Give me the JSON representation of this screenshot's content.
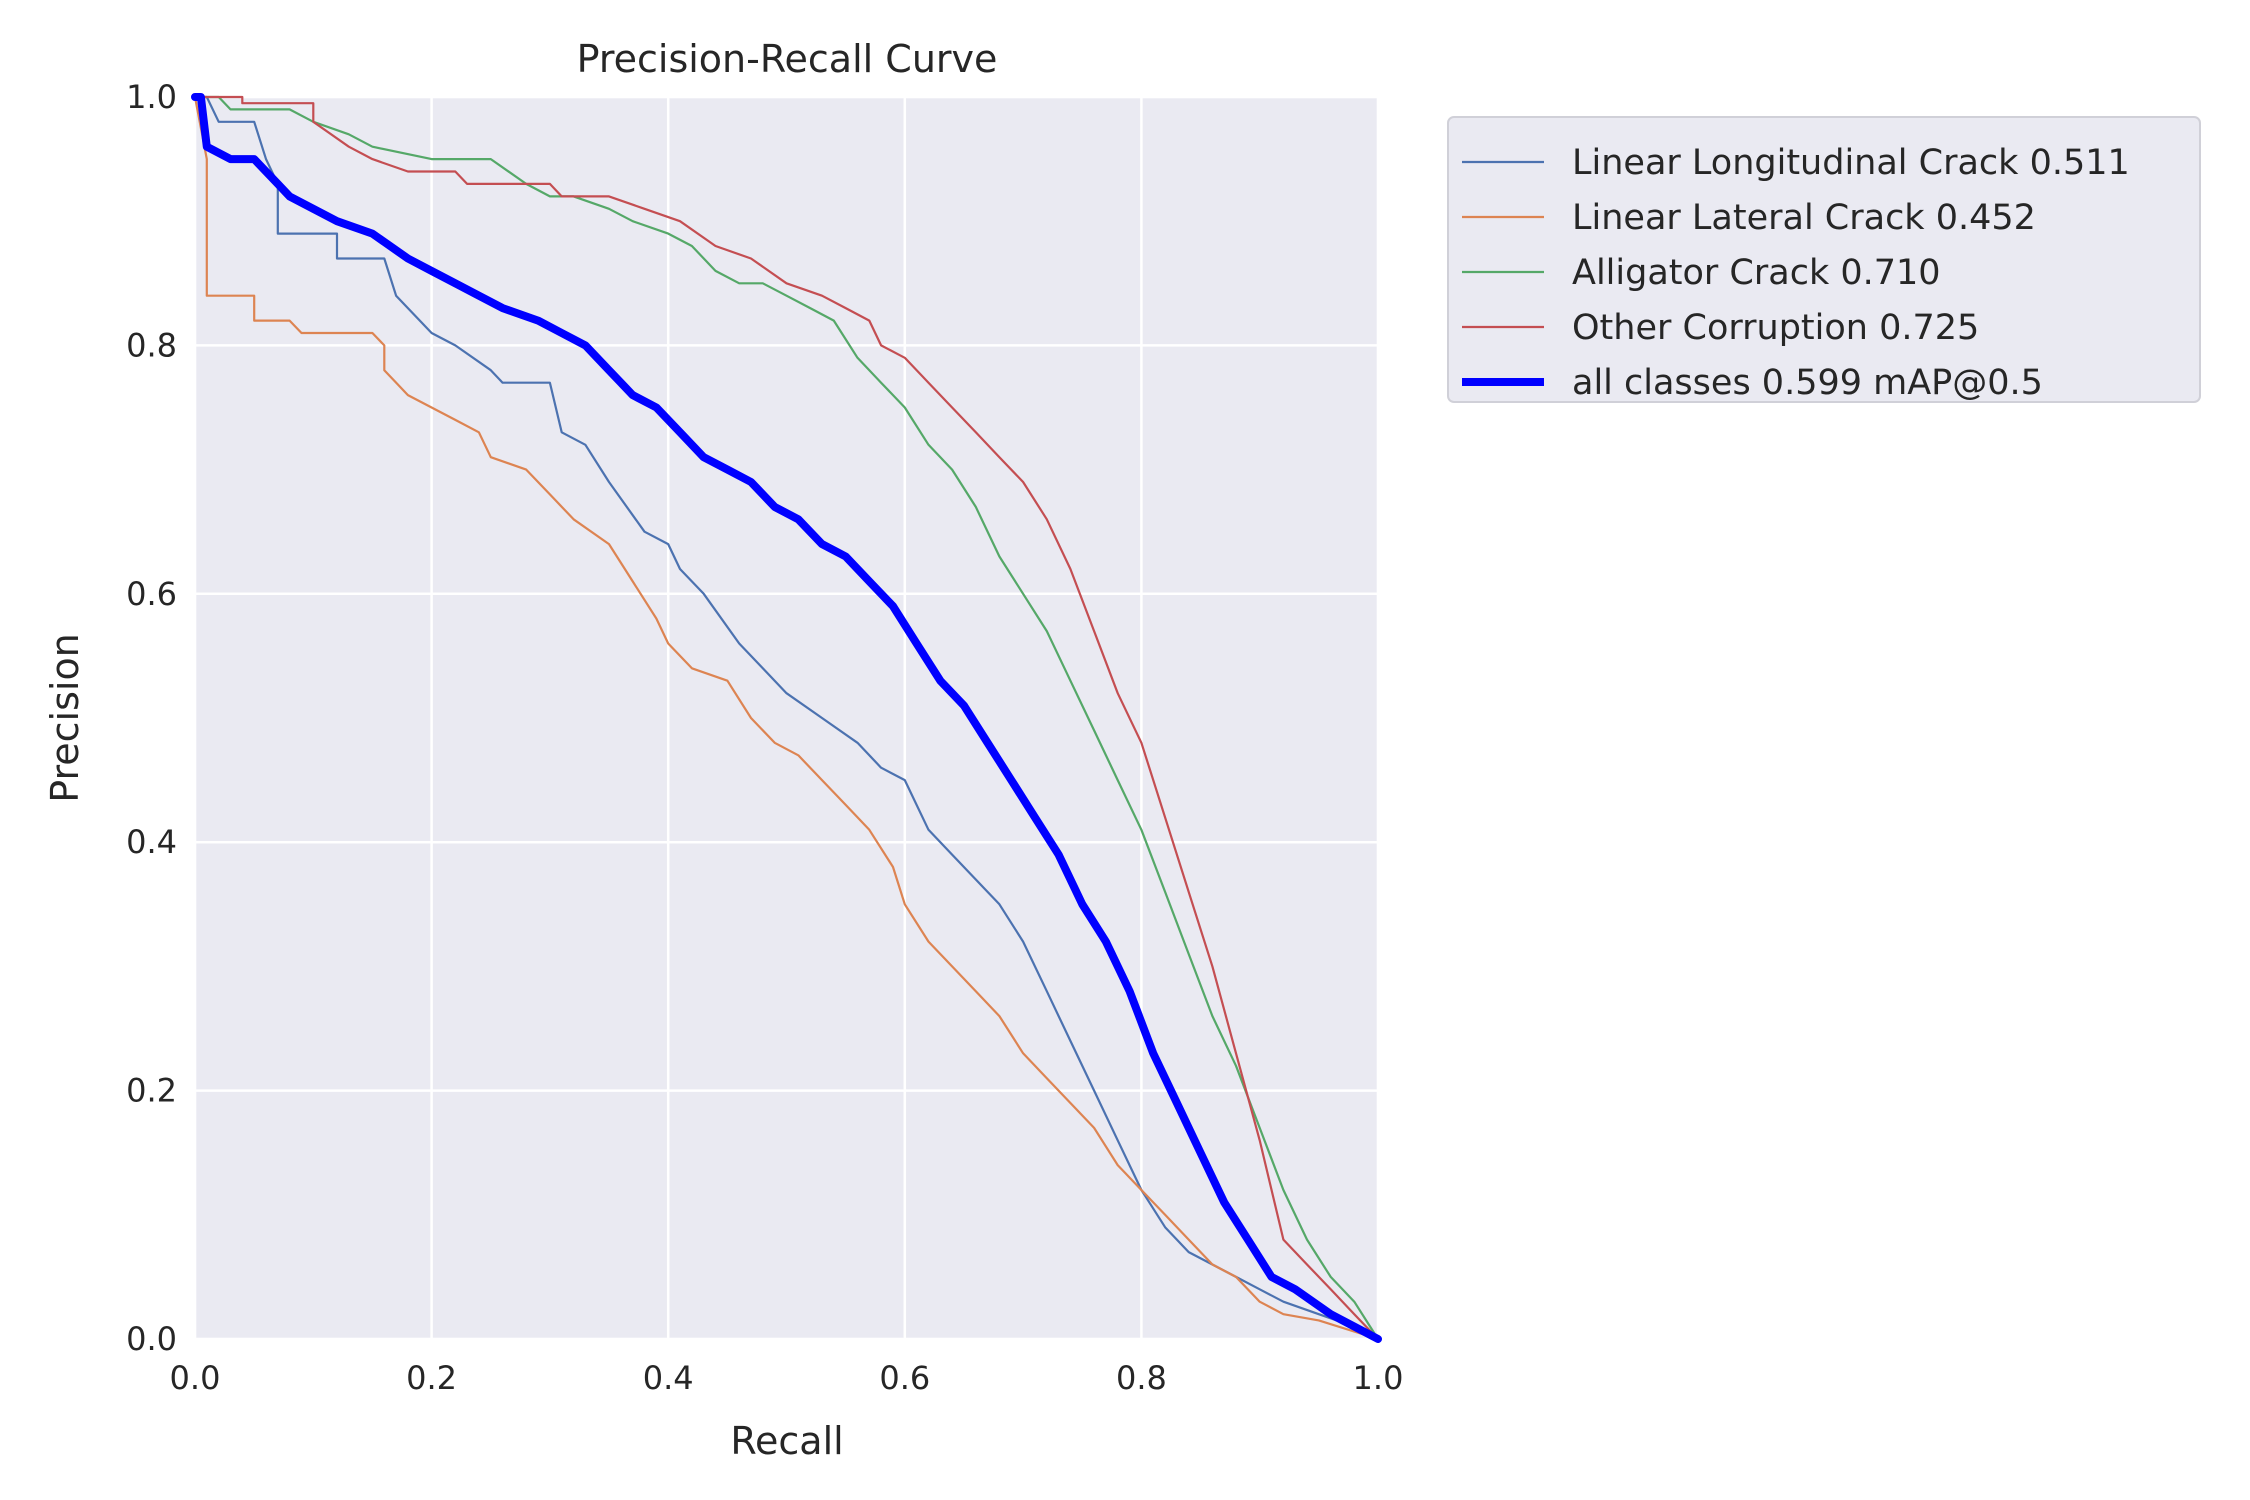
{
  "chart_data": {
    "type": "line",
    "title": "Precision-Recall Curve",
    "xlabel": "Recall",
    "ylabel": "Precision",
    "xlim": [
      0,
      1
    ],
    "ylim": [
      0,
      1
    ],
    "xticks": [
      "0.0",
      "0.2",
      "0.4",
      "0.6",
      "0.8",
      "1.0"
    ],
    "yticks": [
      "0.0",
      "0.2",
      "0.4",
      "0.6",
      "0.8",
      "1.0"
    ],
    "grid": true,
    "legend_position": "outside-top-right",
    "series": [
      {
        "name": "Linear Longitudinal Crack 0.511",
        "color": "#4c72b0",
        "width": "thin",
        "points": [
          [
            0,
            1
          ],
          [
            0.01,
            1
          ],
          [
            0.02,
            0.98
          ],
          [
            0.05,
            0.98
          ],
          [
            0.06,
            0.95
          ],
          [
            0.07,
            0.93
          ],
          [
            0.07,
            0.89
          ],
          [
            0.12,
            0.89
          ],
          [
            0.12,
            0.87
          ],
          [
            0.16,
            0.87
          ],
          [
            0.17,
            0.84
          ],
          [
            0.2,
            0.81
          ],
          [
            0.22,
            0.8
          ],
          [
            0.25,
            0.78
          ],
          [
            0.26,
            0.77
          ],
          [
            0.3,
            0.77
          ],
          [
            0.31,
            0.73
          ],
          [
            0.33,
            0.72
          ],
          [
            0.35,
            0.69
          ],
          [
            0.38,
            0.65
          ],
          [
            0.4,
            0.64
          ],
          [
            0.41,
            0.62
          ],
          [
            0.43,
            0.6
          ],
          [
            0.46,
            0.56
          ],
          [
            0.48,
            0.54
          ],
          [
            0.5,
            0.52
          ],
          [
            0.53,
            0.5
          ],
          [
            0.56,
            0.48
          ],
          [
            0.58,
            0.46
          ],
          [
            0.6,
            0.45
          ],
          [
            0.62,
            0.41
          ],
          [
            0.64,
            0.39
          ],
          [
            0.66,
            0.37
          ],
          [
            0.68,
            0.35
          ],
          [
            0.7,
            0.32
          ],
          [
            0.72,
            0.28
          ],
          [
            0.74,
            0.24
          ],
          [
            0.76,
            0.2
          ],
          [
            0.78,
            0.16
          ],
          [
            0.8,
            0.12
          ],
          [
            0.82,
            0.09
          ],
          [
            0.84,
            0.07
          ],
          [
            0.86,
            0.06
          ],
          [
            0.88,
            0.05
          ],
          [
            0.9,
            0.04
          ],
          [
            0.92,
            0.03
          ],
          [
            0.95,
            0.02
          ],
          [
            0.98,
            0.01
          ],
          [
            1,
            0
          ]
        ]
      },
      {
        "name": "Linear Lateral Crack 0.452",
        "color": "#dd8452",
        "width": "thin",
        "points": [
          [
            0,
            1
          ],
          [
            0.01,
            0.95
          ],
          [
            0.01,
            0.84
          ],
          [
            0.05,
            0.84
          ],
          [
            0.05,
            0.82
          ],
          [
            0.08,
            0.82
          ],
          [
            0.09,
            0.81
          ],
          [
            0.15,
            0.81
          ],
          [
            0.16,
            0.8
          ],
          [
            0.16,
            0.78
          ],
          [
            0.18,
            0.76
          ],
          [
            0.2,
            0.75
          ],
          [
            0.22,
            0.74
          ],
          [
            0.24,
            0.73
          ],
          [
            0.25,
            0.71
          ],
          [
            0.28,
            0.7
          ],
          [
            0.3,
            0.68
          ],
          [
            0.32,
            0.66
          ],
          [
            0.35,
            0.64
          ],
          [
            0.37,
            0.61
          ],
          [
            0.39,
            0.58
          ],
          [
            0.4,
            0.56
          ],
          [
            0.42,
            0.54
          ],
          [
            0.45,
            0.53
          ],
          [
            0.47,
            0.5
          ],
          [
            0.49,
            0.48
          ],
          [
            0.51,
            0.47
          ],
          [
            0.53,
            0.45
          ],
          [
            0.55,
            0.43
          ],
          [
            0.57,
            0.41
          ],
          [
            0.59,
            0.38
          ],
          [
            0.6,
            0.35
          ],
          [
            0.62,
            0.32
          ],
          [
            0.64,
            0.3
          ],
          [
            0.66,
            0.28
          ],
          [
            0.68,
            0.26
          ],
          [
            0.7,
            0.23
          ],
          [
            0.72,
            0.21
          ],
          [
            0.74,
            0.19
          ],
          [
            0.76,
            0.17
          ],
          [
            0.78,
            0.14
          ],
          [
            0.8,
            0.12
          ],
          [
            0.82,
            0.1
          ],
          [
            0.84,
            0.08
          ],
          [
            0.86,
            0.06
          ],
          [
            0.88,
            0.05
          ],
          [
            0.9,
            0.03
          ],
          [
            0.92,
            0.02
          ],
          [
            0.95,
            0.015
          ],
          [
            1,
            0
          ]
        ]
      },
      {
        "name": "Alligator Crack 0.710",
        "color": "#55a868",
        "width": "thin",
        "points": [
          [
            0,
            1
          ],
          [
            0.02,
            1
          ],
          [
            0.03,
            0.99
          ],
          [
            0.08,
            0.99
          ],
          [
            0.1,
            0.98
          ],
          [
            0.13,
            0.97
          ],
          [
            0.15,
            0.96
          ],
          [
            0.2,
            0.95
          ],
          [
            0.25,
            0.95
          ],
          [
            0.28,
            0.93
          ],
          [
            0.3,
            0.92
          ],
          [
            0.32,
            0.92
          ],
          [
            0.35,
            0.91
          ],
          [
            0.37,
            0.9
          ],
          [
            0.4,
            0.89
          ],
          [
            0.42,
            0.88
          ],
          [
            0.44,
            0.86
          ],
          [
            0.46,
            0.85
          ],
          [
            0.48,
            0.85
          ],
          [
            0.5,
            0.84
          ],
          [
            0.52,
            0.83
          ],
          [
            0.54,
            0.82
          ],
          [
            0.56,
            0.79
          ],
          [
            0.58,
            0.77
          ],
          [
            0.6,
            0.75
          ],
          [
            0.62,
            0.72
          ],
          [
            0.64,
            0.7
          ],
          [
            0.66,
            0.67
          ],
          [
            0.68,
            0.63
          ],
          [
            0.7,
            0.6
          ],
          [
            0.72,
            0.57
          ],
          [
            0.74,
            0.53
          ],
          [
            0.76,
            0.49
          ],
          [
            0.78,
            0.45
          ],
          [
            0.8,
            0.41
          ],
          [
            0.82,
            0.36
          ],
          [
            0.84,
            0.31
          ],
          [
            0.86,
            0.26
          ],
          [
            0.88,
            0.22
          ],
          [
            0.9,
            0.17
          ],
          [
            0.92,
            0.12
          ],
          [
            0.94,
            0.08
          ],
          [
            0.96,
            0.05
          ],
          [
            0.98,
            0.03
          ],
          [
            1,
            0
          ]
        ]
      },
      {
        "name": "Other Corruption 0.725",
        "color": "#c44e52",
        "width": "thin",
        "points": [
          [
            0,
            1
          ],
          [
            0.04,
            1
          ],
          [
            0.04,
            0.995
          ],
          [
            0.1,
            0.995
          ],
          [
            0.1,
            0.98
          ],
          [
            0.13,
            0.96
          ],
          [
            0.15,
            0.95
          ],
          [
            0.18,
            0.94
          ],
          [
            0.22,
            0.94
          ],
          [
            0.23,
            0.93
          ],
          [
            0.3,
            0.93
          ],
          [
            0.31,
            0.92
          ],
          [
            0.35,
            0.92
          ],
          [
            0.38,
            0.91
          ],
          [
            0.41,
            0.9
          ],
          [
            0.44,
            0.88
          ],
          [
            0.47,
            0.87
          ],
          [
            0.5,
            0.85
          ],
          [
            0.53,
            0.84
          ],
          [
            0.55,
            0.83
          ],
          [
            0.57,
            0.82
          ],
          [
            0.58,
            0.8
          ],
          [
            0.6,
            0.79
          ],
          [
            0.62,
            0.77
          ],
          [
            0.64,
            0.75
          ],
          [
            0.66,
            0.73
          ],
          [
            0.68,
            0.71
          ],
          [
            0.7,
            0.69
          ],
          [
            0.72,
            0.66
          ],
          [
            0.74,
            0.62
          ],
          [
            0.76,
            0.57
          ],
          [
            0.78,
            0.52
          ],
          [
            0.8,
            0.48
          ],
          [
            0.82,
            0.42
          ],
          [
            0.84,
            0.36
          ],
          [
            0.86,
            0.3
          ],
          [
            0.88,
            0.23
          ],
          [
            0.9,
            0.16
          ],
          [
            0.92,
            0.08
          ],
          [
            0.94,
            0.06
          ],
          [
            0.96,
            0.04
          ],
          [
            0.98,
            0.02
          ],
          [
            1,
            0
          ]
        ]
      },
      {
        "name": "all classes 0.599 mAP@0.5",
        "color": "#0000ff",
        "width": "thick",
        "points": [
          [
            0,
            1
          ],
          [
            0.005,
            1
          ],
          [
            0.01,
            0.96
          ],
          [
            0.03,
            0.95
          ],
          [
            0.05,
            0.95
          ],
          [
            0.07,
            0.93
          ],
          [
            0.08,
            0.92
          ],
          [
            0.1,
            0.91
          ],
          [
            0.12,
            0.9
          ],
          [
            0.15,
            0.89
          ],
          [
            0.18,
            0.87
          ],
          [
            0.2,
            0.86
          ],
          [
            0.22,
            0.85
          ],
          [
            0.24,
            0.84
          ],
          [
            0.26,
            0.83
          ],
          [
            0.29,
            0.82
          ],
          [
            0.31,
            0.81
          ],
          [
            0.33,
            0.8
          ],
          [
            0.35,
            0.78
          ],
          [
            0.37,
            0.76
          ],
          [
            0.39,
            0.75
          ],
          [
            0.41,
            0.73
          ],
          [
            0.43,
            0.71
          ],
          [
            0.45,
            0.7
          ],
          [
            0.47,
            0.69
          ],
          [
            0.49,
            0.67
          ],
          [
            0.51,
            0.66
          ],
          [
            0.53,
            0.64
          ],
          [
            0.55,
            0.63
          ],
          [
            0.57,
            0.61
          ],
          [
            0.59,
            0.59
          ],
          [
            0.61,
            0.56
          ],
          [
            0.63,
            0.53
          ],
          [
            0.65,
            0.51
          ],
          [
            0.67,
            0.48
          ],
          [
            0.69,
            0.45
          ],
          [
            0.71,
            0.42
          ],
          [
            0.73,
            0.39
          ],
          [
            0.75,
            0.35
          ],
          [
            0.77,
            0.32
          ],
          [
            0.79,
            0.28
          ],
          [
            0.81,
            0.23
          ],
          [
            0.83,
            0.19
          ],
          [
            0.85,
            0.15
          ],
          [
            0.87,
            0.11
          ],
          [
            0.89,
            0.08
          ],
          [
            0.91,
            0.05
          ],
          [
            0.93,
            0.04
          ],
          [
            0.96,
            0.02
          ],
          [
            1,
            0
          ]
        ]
      }
    ]
  }
}
